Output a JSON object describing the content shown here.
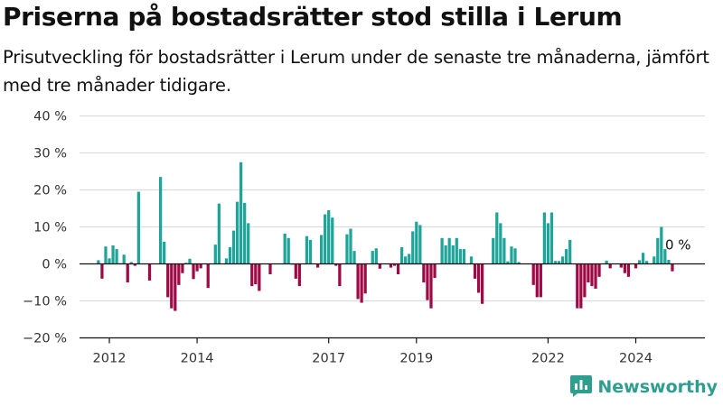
{
  "title": "Priserna på bostadsrätter stod stilla i Lerum",
  "subtitle": "Prisutveckling för bostadsrätter i Lerum under de senaste tre månaderna, jämfört med tre månader tidigare.",
  "brand": {
    "name": "Newsworthy",
    "icon": "bar-chart-logo-icon",
    "color": "#2e9e8f"
  },
  "colors": {
    "positive": "#1fa49a",
    "negative": "#9e0a45",
    "grid": "#d9d9d9"
  },
  "chart_data": {
    "type": "bar",
    "x_start": "2011-10",
    "x_step": "month",
    "ylim": [
      -20,
      40
    ],
    "yticks": [
      -20,
      -10,
      0,
      10,
      20,
      30,
      40
    ],
    "ytick_labels": [
      "−20 %",
      "−10 %",
      "0 %",
      "10 %",
      "20 %",
      "30 %",
      "40 %"
    ],
    "xticks": [
      "2012",
      "2014",
      "2017",
      "2019",
      "2022",
      "2024"
    ],
    "last_value_label": "0 %",
    "values": [
      1,
      -4,
      4.7,
      1.5,
      5,
      4,
      0.2,
      2.5,
      -5,
      0.5,
      -0.5,
      19.5,
      0,
      0,
      -4.5,
      0,
      0,
      23.5,
      6,
      -9,
      -12,
      -12.7,
      -5.7,
      -2.5,
      0.3,
      1.4,
      -4.1,
      -2,
      -1.2,
      0,
      -6.5,
      0,
      5.2,
      16.3,
      0,
      1.5,
      4.5,
      9,
      16.8,
      27.5,
      16.5,
      11,
      -6,
      -5.5,
      -7.3,
      0,
      0,
      -2.8,
      0,
      0,
      0,
      8.2,
      7,
      -0.2,
      -4,
      -6,
      0,
      7.5,
      6.5,
      0,
      -1,
      7.8,
      13.4,
      14.5,
      12.5,
      -0.5,
      -6,
      0,
      8,
      9.5,
      3.5,
      -9.5,
      -10.5,
      -8,
      0,
      3.5,
      4.2,
      -1.3,
      0,
      0,
      -1,
      -0.5,
      -2.8,
      4.5,
      2,
      2.7,
      8.8,
      11.4,
      10.5,
      -5,
      -9.8,
      -12,
      -3.8,
      0,
      7,
      5,
      7,
      5,
      7,
      4,
      4,
      0,
      2,
      -4,
      -7.8,
      -10.8,
      0,
      0,
      7,
      13.9,
      11,
      7,
      0.7,
      4.7,
      4.2,
      0.5,
      0,
      0,
      0,
      -5.7,
      -9,
      -9,
      13.9,
      11,
      13.9,
      0.8,
      0.8,
      2,
      4,
      6.5,
      0,
      -12,
      -12,
      -9,
      -5,
      -6,
      -6.7,
      -3.5,
      0,
      0.9,
      -1.2,
      0,
      0,
      -1,
      -2.5,
      -3.5,
      0,
      -1.2,
      1,
      3,
      0.8,
      0,
      2,
      7,
      10,
      4,
      1.1,
      -2,
      0
    ]
  }
}
